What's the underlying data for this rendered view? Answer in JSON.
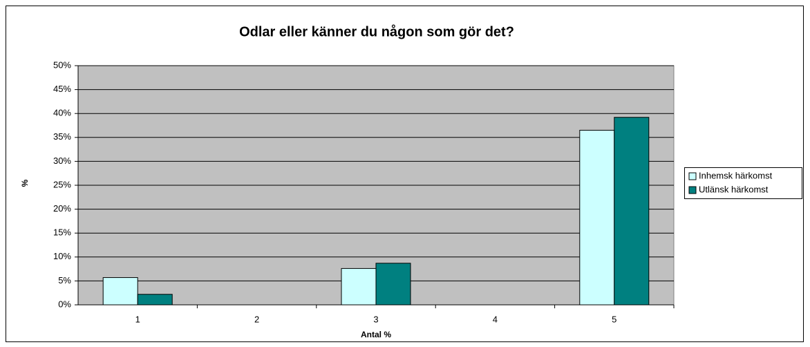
{
  "chart_data": {
    "type": "bar",
    "title": "Odlar eller känner du någon som gör det?",
    "x_label": "Antal %",
    "y_label": "%",
    "categories": [
      "1",
      "2",
      "3",
      "4",
      "5"
    ],
    "series": [
      {
        "name": "Inhemsk härkomst",
        "color": "#ccffff",
        "values": [
          5.7,
          null,
          7.6,
          null,
          36.5
        ]
      },
      {
        "name": "Utlänsk härkomst",
        "color": "#008080",
        "values": [
          2.2,
          null,
          8.7,
          null,
          39.2
        ]
      }
    ],
    "ylim": [
      0,
      50
    ],
    "yticks": [
      {
        "value": 0,
        "label": "0%"
      },
      {
        "value": 5,
        "label": "5%"
      },
      {
        "value": 10,
        "label": "10%"
      },
      {
        "value": 15,
        "label": "15%"
      },
      {
        "value": 20,
        "label": "20%"
      },
      {
        "value": 25,
        "label": "25%"
      },
      {
        "value": 30,
        "label": "30%"
      },
      {
        "value": 35,
        "label": "35%"
      },
      {
        "value": 40,
        "label": "40%"
      },
      {
        "value": 45,
        "label": "45%"
      },
      {
        "value": 50,
        "label": "50%"
      }
    ],
    "grid": true,
    "legend": "right"
  }
}
